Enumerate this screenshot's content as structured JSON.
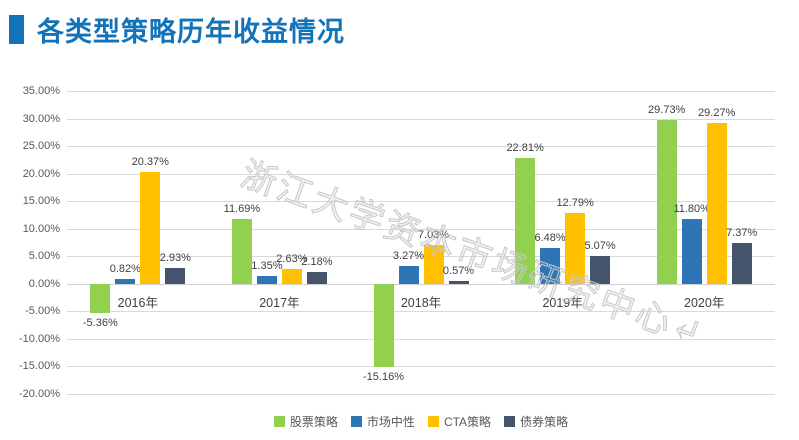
{
  "header": {
    "title": "各类型策略历年收益情况"
  },
  "watermark": {
    "text": "浙江大学资本市场研究中心↵"
  },
  "colors": {
    "title_blue": "#1273b9",
    "gridline": "#d9d9d9",
    "axis_text": "#595959",
    "data_label_text": "#404040",
    "series_green": "#92d050",
    "series_blue": "#2e75b6",
    "series_yellow": "#ffc000",
    "series_navy": "#44546a"
  },
  "chart_data": {
    "type": "bar",
    "title": "各类型策略历年收益情况",
    "categories": [
      "2016年",
      "2017年",
      "2018年",
      "2019年",
      "2020年"
    ],
    "series": [
      {
        "name": "股票策略",
        "color": "#92d050",
        "values": [
          -5.36,
          11.69,
          -15.16,
          22.81,
          29.73
        ]
      },
      {
        "name": "市场中性",
        "color": "#2e75b6",
        "values": [
          0.82,
          1.35,
          3.27,
          6.48,
          11.8
        ]
      },
      {
        "name": "CTA策略",
        "color": "#ffc000",
        "values": [
          20.37,
          2.63,
          7.03,
          12.79,
          29.27
        ]
      },
      {
        "name": "债券策略",
        "color": "#44546a",
        "values": [
          2.93,
          2.18,
          0.57,
          5.07,
          7.37
        ]
      }
    ],
    "data_labels": [
      [
        "-5.36%",
        "11.69%",
        "-15.16%",
        "22.81%",
        "29.73%"
      ],
      [
        "0.82%",
        "1.35%",
        "3.27%",
        "6.48%",
        "11.80%"
      ],
      [
        "20.37%",
        "2.63%",
        "7.03%",
        "12.79%",
        "29.27%"
      ],
      [
        "2.93%",
        "2.18%",
        "0.57%",
        "5.07%",
        "7.37%"
      ]
    ],
    "xlabel": "",
    "ylabel": "",
    "y_axis": {
      "min": -20,
      "max": 35,
      "step": 5,
      "tick_suffix": "%",
      "decimals": 2
    },
    "grid": true,
    "legend_position": "bottom"
  }
}
